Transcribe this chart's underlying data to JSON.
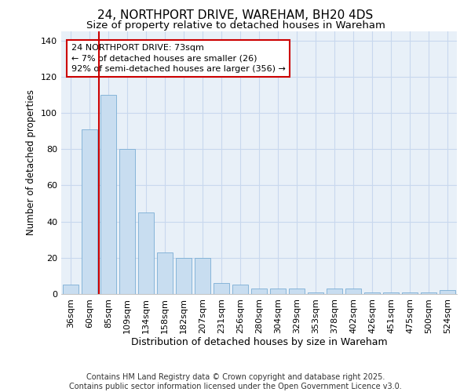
{
  "title": "24, NORTHPORT DRIVE, WAREHAM, BH20 4DS",
  "subtitle": "Size of property relative to detached houses in Wareham",
  "xlabel": "Distribution of detached houses by size in Wareham",
  "ylabel": "Number of detached properties",
  "categories": [
    "36sqm",
    "60sqm",
    "85sqm",
    "109sqm",
    "134sqm",
    "158sqm",
    "182sqm",
    "207sqm",
    "231sqm",
    "256sqm",
    "280sqm",
    "304sqm",
    "329sqm",
    "353sqm",
    "378sqm",
    "402sqm",
    "426sqm",
    "451sqm",
    "475sqm",
    "500sqm",
    "524sqm"
  ],
  "values": [
    5,
    91,
    110,
    80,
    45,
    23,
    20,
    20,
    6,
    5,
    3,
    3,
    3,
    1,
    3,
    3,
    1,
    1,
    1,
    1,
    2
  ],
  "bar_color": "#c8ddf0",
  "bar_edge_color": "#7aadd4",
  "grid_color": "#c8d8ee",
  "background_color": "#e8f0f8",
  "vline_color": "#cc0000",
  "annotation_text": "24 NORTHPORT DRIVE: 73sqm\n← 7% of detached houses are smaller (26)\n92% of semi-detached houses are larger (356) →",
  "annotation_box_color": "#cc0000",
  "ylim": [
    0,
    145
  ],
  "yticks": [
    0,
    20,
    40,
    60,
    80,
    100,
    120,
    140
  ],
  "footer": "Contains HM Land Registry data © Crown copyright and database right 2025.\nContains public sector information licensed under the Open Government Licence v3.0.",
  "title_fontsize": 11,
  "subtitle_fontsize": 9.5,
  "xlabel_fontsize": 9,
  "ylabel_fontsize": 8.5,
  "tick_fontsize": 8,
  "annotation_fontsize": 8,
  "footer_fontsize": 7
}
